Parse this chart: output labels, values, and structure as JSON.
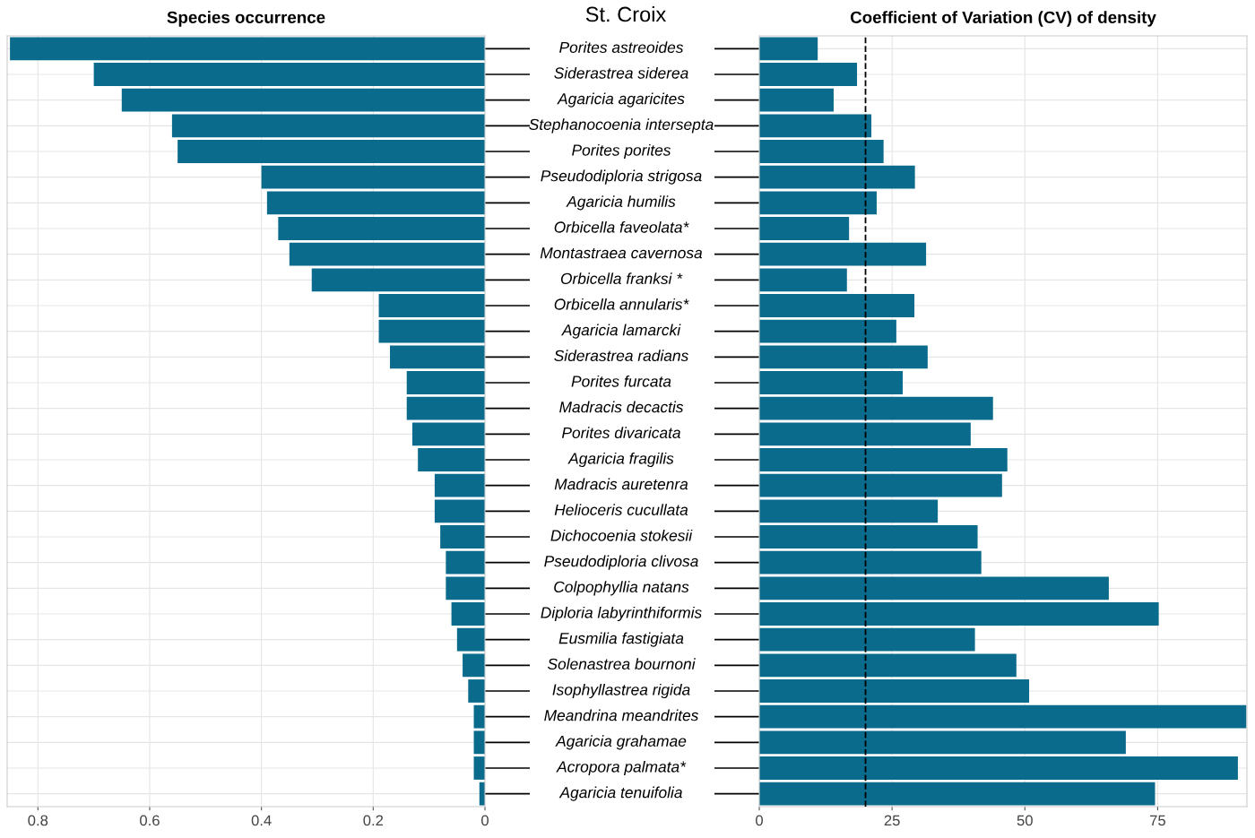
{
  "chart_data": [
    {
      "type": "bar",
      "orientation": "horizontal",
      "title": "Species occurrence",
      "annotations": [
        "St. Croix"
      ],
      "categories": [
        "Porites astreoides",
        "Siderastrea siderea",
        "Agaricia agaricites",
        "Stephanocoenia intersepta",
        "Porites porites",
        "Pseudodiploria strigosa",
        "Agaricia humilis",
        "Orbicella faveolata*",
        "Montastraea cavernosa",
        "Orbicella franksi *",
        "Orbicella annularis*",
        "Agaricia lamarcki",
        "Siderastrea radians",
        "Porites furcata",
        "Madracis decactis",
        "Porites divaricata",
        "Agaricia fragilis",
        "Madracis auretenra",
        "Helioceris cucullata",
        "Dichocoenia stokesii",
        "Pseudodiploria clivosa",
        "Colpophyllia natans",
        "Diploria labyrinthiformis",
        "Eusmilia fastigiata",
        "Solenastrea bournoni",
        "Isophyllastrea rigida",
        "Meandrina meandrites",
        "Agaricia grahamae",
        "Acropora palmata*",
        "Agaricia tenuifolia"
      ],
      "values": [
        0.85,
        0.7,
        0.65,
        0.56,
        0.55,
        0.4,
        0.39,
        0.37,
        0.35,
        0.31,
        0.19,
        0.19,
        0.17,
        0.14,
        0.14,
        0.13,
        0.12,
        0.09,
        0.09,
        0.08,
        0.07,
        0.07,
        0.06,
        0.05,
        0.04,
        0.03,
        0.02,
        0.02,
        0.02,
        0.01
      ],
      "color": "#0b6b8c",
      "xlim": [
        0.855,
        0
      ],
      "xticks": [
        0.8,
        0.6,
        0.4,
        0.2,
        0
      ],
      "grid": true
    },
    {
      "type": "bar",
      "orientation": "horizontal",
      "title": "Coefficient of Variation (CV) of density",
      "tick_labels": "x",
      "categories": [
        null,
        null,
        null,
        null,
        null,
        null,
        null,
        null,
        null,
        null,
        null,
        null,
        null,
        null,
        null,
        null,
        null,
        null,
        null,
        null,
        null,
        null,
        null,
        null,
        null,
        null,
        null,
        null,
        null,
        null
      ],
      "values": [
        11,
        18.4,
        14,
        21.1,
        23.4,
        29.3,
        22.1,
        16.9,
        31.4,
        16.5,
        29.2,
        25.8,
        31.7,
        27,
        44,
        39.8,
        46.7,
        45.7,
        33.6,
        41.1,
        41.8,
        65.8,
        75.2,
        40.6,
        48.4,
        50.8,
        91.7,
        69,
        90.1,
        74.5
      ],
      "color": "#0b6b8c",
      "xlim": [
        0,
        91.8
      ],
      "xticks": [
        0,
        25,
        50,
        75
      ],
      "grid": true,
      "ref_lines": [
        {
          "axis": "x",
          "value": 20,
          "color": "#000000",
          "line_style": "dashed"
        }
      ]
    }
  ]
}
